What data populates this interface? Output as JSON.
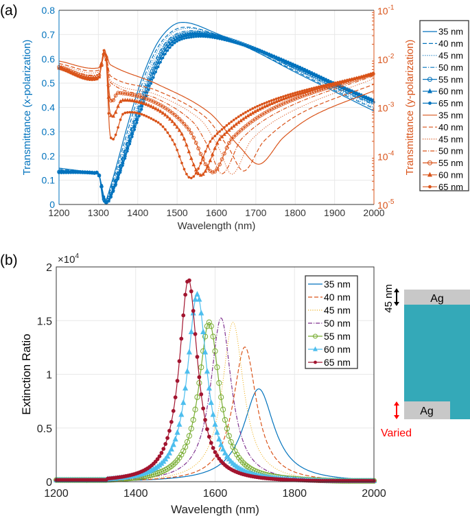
{
  "panel_labels": {
    "a": "(a)",
    "b": "(b)"
  },
  "colors": {
    "x_pol": "#0072BD",
    "y_pol": "#D95319"
  },
  "chart_data": [
    {
      "type": "line",
      "panel": "(a)",
      "xlabel": "Wavelength (nm)",
      "ylabel_left": "Transmittance (x-polarization)",
      "ylabel_right": "Transmittance (y-polarization)",
      "xlim": [
        1200,
        2000
      ],
      "ylim_left": [
        0,
        0.8
      ],
      "ylim_right": [
        1e-05,
        0.1
      ],
      "right_scale": "log",
      "grid": true,
      "legend_placement": "outside-right",
      "x_ticks": [
        "1200",
        "1300",
        "1400",
        "1500",
        "1600",
        "1700",
        "1800",
        "1900",
        "2000"
      ],
      "left_ticks": [
        "0",
        "0.1",
        "0.2",
        "0.3",
        "0.4",
        "0.5",
        "0.6",
        "0.7",
        "0.8"
      ],
      "right_ticks": [
        {
          "base": "10",
          "exp": "-5"
        },
        {
          "base": "10",
          "exp": "-4"
        },
        {
          "base": "10",
          "exp": "-3"
        },
        {
          "base": "10",
          "exp": "-2"
        },
        {
          "base": "10",
          "exp": "-1"
        }
      ],
      "series": [
        {
          "name": "35 nm",
          "axis": "left",
          "color": "#0072BD",
          "style": "solid",
          "marker": "none",
          "points": [
            [
              1200,
              0.15
            ],
            [
              1290,
              0.13
            ],
            [
              1302,
              0.12
            ],
            [
              1313,
              0.01
            ],
            [
              1330,
              0.07
            ],
            [
              1380,
              0.36
            ],
            [
              1420,
              0.56
            ],
            [
              1460,
              0.69
            ],
            [
              1510,
              0.75
            ],
            [
              1600,
              0.705
            ],
            [
              1700,
              0.63
            ],
            [
              1800,
              0.545
            ],
            [
              1900,
              0.465
            ],
            [
              2000,
              0.385
            ]
          ]
        },
        {
          "name": "40 nm",
          "axis": "left",
          "color": "#0072BD",
          "style": "dashed",
          "marker": "none",
          "points": [
            [
              1200,
              0.145
            ],
            [
              1290,
              0.13
            ],
            [
              1302,
              0.12
            ],
            [
              1314,
              0.01
            ],
            [
              1332,
              0.07
            ],
            [
              1385,
              0.36
            ],
            [
              1425,
              0.56
            ],
            [
              1465,
              0.68
            ],
            [
              1515,
              0.73
            ],
            [
              1600,
              0.7
            ],
            [
              1700,
              0.63
            ],
            [
              1800,
              0.55
            ],
            [
              1900,
              0.47
            ],
            [
              2000,
              0.395
            ]
          ]
        },
        {
          "name": "45 nm",
          "axis": "left",
          "color": "#0072BD",
          "style": "dotted",
          "marker": "none",
          "points": [
            [
              1200,
              0.14
            ],
            [
              1290,
              0.13
            ],
            [
              1302,
              0.12
            ],
            [
              1315,
              0.01
            ],
            [
              1334,
              0.07
            ],
            [
              1390,
              0.36
            ],
            [
              1430,
              0.56
            ],
            [
              1470,
              0.68
            ],
            [
              1520,
              0.725
            ],
            [
              1600,
              0.7
            ],
            [
              1700,
              0.635
            ],
            [
              1800,
              0.555
            ],
            [
              1900,
              0.475
            ],
            [
              2000,
              0.4
            ]
          ]
        },
        {
          "name": "50 nm",
          "axis": "left",
          "color": "#0072BD",
          "style": "dashdot",
          "marker": "none",
          "points": [
            [
              1200,
              0.14
            ],
            [
              1290,
              0.13
            ],
            [
              1302,
              0.12
            ],
            [
              1316,
              0.01
            ],
            [
              1336,
              0.07
            ],
            [
              1393,
              0.36
            ],
            [
              1435,
              0.56
            ],
            [
              1475,
              0.675
            ],
            [
              1525,
              0.715
            ],
            [
              1600,
              0.698
            ],
            [
              1700,
              0.637
            ],
            [
              1800,
              0.56
            ],
            [
              1900,
              0.48
            ],
            [
              2000,
              0.41
            ]
          ]
        },
        {
          "name": "55 nm",
          "axis": "left",
          "color": "#0072BD",
          "style": "solid",
          "marker": "circle",
          "points": [
            [
              1200,
              0.135
            ],
            [
              1290,
              0.13
            ],
            [
              1302,
              0.12
            ],
            [
              1317,
              0.01
            ],
            [
              1338,
              0.07
            ],
            [
              1396,
              0.36
            ],
            [
              1440,
              0.56
            ],
            [
              1480,
              0.67
            ],
            [
              1530,
              0.705
            ],
            [
              1600,
              0.695
            ],
            [
              1700,
              0.64
            ],
            [
              1800,
              0.565
            ],
            [
              1900,
              0.49
            ],
            [
              2000,
              0.42
            ]
          ]
        },
        {
          "name": "60 nm",
          "axis": "left",
          "color": "#0072BD",
          "style": "solid",
          "marker": "triangle",
          "points": [
            [
              1200,
              0.135
            ],
            [
              1290,
              0.13
            ],
            [
              1302,
              0.12
            ],
            [
              1318,
              0.01
            ],
            [
              1340,
              0.07
            ],
            [
              1400,
              0.36
            ],
            [
              1445,
              0.56
            ],
            [
              1485,
              0.665
            ],
            [
              1535,
              0.7
            ],
            [
              1600,
              0.69
            ],
            [
              1700,
              0.64
            ],
            [
              1800,
              0.57
            ],
            [
              1900,
              0.495
            ],
            [
              2000,
              0.425
            ]
          ]
        },
        {
          "name": "65 nm",
          "axis": "left",
          "color": "#0072BD",
          "style": "solid",
          "marker": "dot",
          "points": [
            [
              1200,
              0.13
            ],
            [
              1290,
              0.13
            ],
            [
              1302,
              0.12
            ],
            [
              1319,
              0.01
            ],
            [
              1342,
              0.07
            ],
            [
              1403,
              0.36
            ],
            [
              1450,
              0.56
            ],
            [
              1490,
              0.66
            ],
            [
              1540,
              0.69
            ],
            [
              1600,
              0.685
            ],
            [
              1700,
              0.64
            ],
            [
              1800,
              0.575
            ],
            [
              1900,
              0.5
            ],
            [
              2000,
              0.43
            ]
          ]
        },
        {
          "name": "35 nm",
          "axis": "right",
          "color": "#D95319",
          "style": "solid",
          "marker": "none",
          "points": [
            [
              1200,
              0.009
            ],
            [
              1300,
              0.0065
            ],
            [
              1318,
              0.013
            ],
            [
              1330,
              0.0076
            ],
            [
              1450,
              0.003
            ],
            [
              1580,
              0.0008
            ],
            [
              1660,
              0.00015
            ],
            [
              1710,
              6.8e-05
            ],
            [
              1770,
              0.00024
            ],
            [
              1850,
              0.0007
            ],
            [
              2000,
              0.0022
            ]
          ]
        },
        {
          "name": "40 nm",
          "axis": "right",
          "color": "#D95319",
          "style": "dashed",
          "marker": "none",
          "points": [
            [
              1200,
              0.008
            ],
            [
              1300,
              0.0058
            ],
            [
              1318,
              0.013
            ],
            [
              1330,
              0.0045
            ],
            [
              1450,
              0.0022
            ],
            [
              1570,
              0.00065
            ],
            [
              1630,
              0.00015
            ],
            [
              1670,
              4.9e-05
            ],
            [
              1720,
              0.0002
            ],
            [
              1820,
              0.0008
            ],
            [
              2000,
              0.003
            ]
          ]
        },
        {
          "name": "45 nm",
          "axis": "right",
          "color": "#D95319",
          "style": "dotted",
          "marker": "none",
          "points": [
            [
              1200,
              0.0075
            ],
            [
              1300,
              0.0053
            ],
            [
              1318,
              0.013
            ],
            [
              1330,
              0.0036
            ],
            [
              1450,
              0.0018
            ],
            [
              1560,
              0.00055
            ],
            [
              1605,
              0.00015
            ],
            [
              1640,
              4.2e-05
            ],
            [
              1690,
              0.00022
            ],
            [
              1800,
              0.0009
            ],
            [
              2000,
              0.0039
            ]
          ]
        },
        {
          "name": "50 nm",
          "axis": "right",
          "color": "#D95319",
          "style": "dashdot",
          "marker": "none",
          "points": [
            [
              1200,
              0.007
            ],
            [
              1300,
              0.0048
            ],
            [
              1318,
              0.013
            ],
            [
              1330,
              0.0033
            ],
            [
              1450,
              0.0015
            ],
            [
              1540,
              0.0005
            ],
            [
              1580,
              0.00015
            ],
            [
              1615,
              4.3e-05
            ],
            [
              1665,
              0.00023
            ],
            [
              1780,
              0.001
            ],
            [
              2000,
              0.0045
            ]
          ]
        },
        {
          "name": "55 nm",
          "axis": "right",
          "color": "#D95319",
          "style": "solid",
          "marker": "circle",
          "points": [
            [
              1200,
              0.0068
            ],
            [
              1300,
              0.0043
            ],
            [
              1318,
              0.013
            ],
            [
              1330,
              0.0015
            ],
            [
              1350,
              0.002
            ],
            [
              1450,
              0.0012
            ],
            [
              1530,
              0.00035
            ],
            [
              1590,
              4.6e-05
            ],
            [
              1640,
              0.00023
            ],
            [
              1760,
              0.0011
            ],
            [
              2000,
              0.005
            ]
          ]
        },
        {
          "name": "60 nm",
          "axis": "right",
          "color": "#D95319",
          "style": "solid",
          "marker": "triangle",
          "points": [
            [
              1200,
              0.0065
            ],
            [
              1300,
              0.004
            ],
            [
              1318,
              0.013
            ],
            [
              1330,
              0.00074
            ],
            [
              1360,
              0.0014
            ],
            [
              1450,
              0.0009
            ],
            [
              1510,
              0.0003
            ],
            [
              1560,
              4e-05
            ],
            [
              1610,
              0.00023
            ],
            [
              1740,
              0.0012
            ],
            [
              2000,
              0.005
            ]
          ]
        },
        {
          "name": "65 nm",
          "axis": "right",
          "color": "#D95319",
          "style": "solid",
          "marker": "dot",
          "points": [
            [
              1200,
              0.0063
            ],
            [
              1300,
              0.0039
            ],
            [
              1318,
              0.014
            ],
            [
              1330,
              0.00026
            ],
            [
              1365,
              0.00076
            ],
            [
              1450,
              0.0005
            ],
            [
              1490,
              0.0002
            ],
            [
              1535,
              3.5e-05
            ],
            [
              1590,
              0.00023
            ],
            [
              1720,
              0.0012
            ],
            [
              2000,
              0.005
            ]
          ]
        }
      ]
    },
    {
      "type": "line",
      "panel": "(b)",
      "xlabel": "Wavelength (nm)",
      "ylabel": "Extinction Ratio",
      "y_multiplier": {
        "base": "×10",
        "exp": "4"
      },
      "xlim": [
        1200,
        2000
      ],
      "ylim": [
        0,
        20000
      ],
      "grid": true,
      "legend_placement": "top-right",
      "x_ticks": [
        "1200",
        "1400",
        "1600",
        "1800",
        "2000"
      ],
      "y_ticks": [
        "0",
        "0.5",
        "1",
        "1.5",
        "2"
      ],
      "baseline_below_1330nm": 150,
      "series": [
        {
          "name": "35 nm",
          "color": "#0072BD",
          "style": "solid",
          "marker": "none",
          "peak_wavelength": 1710,
          "peak_value": 8700,
          "fwhm": 95
        },
        {
          "name": "40 nm",
          "color": "#D95319",
          "style": "dashed",
          "marker": "none",
          "peak_wavelength": 1675,
          "peak_value": 12600,
          "fwhm": 72
        },
        {
          "name": "45 nm",
          "color": "#EDB120",
          "style": "dotted",
          "marker": "none",
          "peak_wavelength": 1645,
          "peak_value": 14900,
          "fwhm": 66
        },
        {
          "name": "50 nm",
          "color": "#7E2F8E",
          "style": "dashdot",
          "marker": "none",
          "peak_wavelength": 1615,
          "peak_value": 15300,
          "fwhm": 64
        },
        {
          "name": "55 nm",
          "color": "#77AC30",
          "style": "solid",
          "marker": "circle",
          "peak_wavelength": 1585,
          "peak_value": 14900,
          "fwhm": 64
        },
        {
          "name": "60 nm",
          "color": "#4DBEEE",
          "style": "solid",
          "marker": "triangle",
          "peak_wavelength": 1555,
          "peak_value": 17500,
          "fwhm": 60
        },
        {
          "name": "65 nm",
          "color": "#A2142F",
          "style": "solid",
          "marker": "dot",
          "peak_wavelength": 1533,
          "peak_value": 18900,
          "fwhm": 56
        }
      ]
    }
  ],
  "schematic": {
    "top_layer": "Ag",
    "bottom_layer": "Ag",
    "top_thickness": "45 nm",
    "bottom_thickness": "Varied",
    "metal_color": "#C8C8C8",
    "dielectric_color": "#34A9B8",
    "varied_color": "#FF0000"
  }
}
